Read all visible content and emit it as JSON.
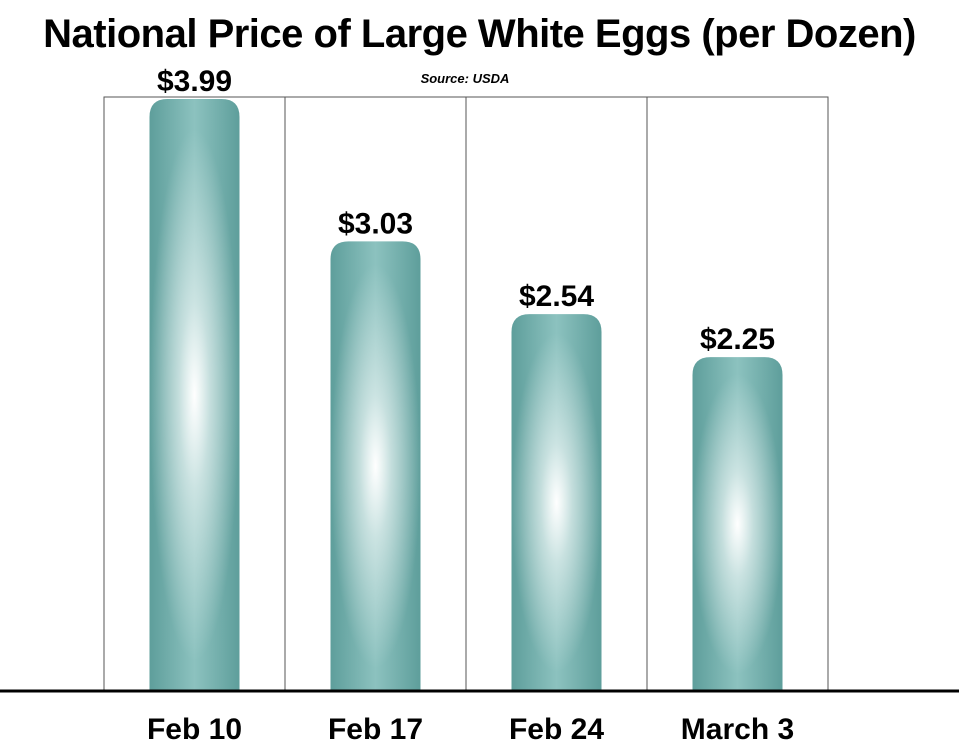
{
  "chart_data": {
    "type": "bar",
    "title": "National Price of Large White Eggs (per Dozen)",
    "subtitle": "Source: USDA",
    "categories": [
      "Feb 10",
      "Feb 17",
      "Feb 24",
      "March 3"
    ],
    "values": [
      3.99,
      3.03,
      2.54,
      2.25
    ],
    "value_labels": [
      "$3.99",
      "$3.03",
      "$2.54",
      "$2.25"
    ],
    "xlabel": "",
    "ylabel": "",
    "ylim": [
      0.0,
      4.0
    ],
    "grid": false,
    "legend": "none",
    "colors": {
      "bar_edge": "#5e9e9b",
      "bar_mid": "#8cc2bf",
      "bar_center": "#ffffff",
      "frame": "#555555",
      "axis": "#000000"
    }
  }
}
